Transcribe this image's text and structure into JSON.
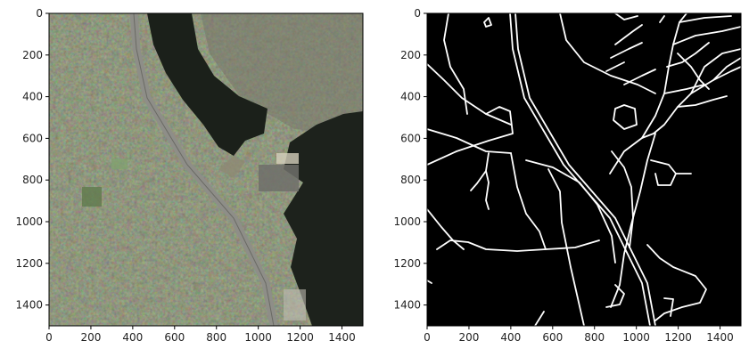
{
  "figure": {
    "panels": [
      {
        "name": "aerial-image",
        "kind": "image",
        "x_range": [
          0,
          1500
        ],
        "y_range": [
          1500,
          0
        ],
        "x_ticks": [
          "0",
          "200",
          "400",
          "600",
          "800",
          "1000",
          "1200",
          "1400"
        ],
        "y_ticks": [
          "0",
          "200",
          "400",
          "600",
          "800",
          "1000",
          "1200",
          "1400"
        ],
        "colors": {
          "forest": "#3a4a2e",
          "water": "#1a1f18",
          "highway": "#8e8e88"
        }
      },
      {
        "name": "road-mask",
        "kind": "mask",
        "x_range": [
          0,
          1500
        ],
        "y_range": [
          1500,
          0
        ],
        "x_ticks": [
          "0",
          "200",
          "400",
          "600",
          "800",
          "1000",
          "1200",
          "1400"
        ],
        "y_ticks": [
          "0",
          "200",
          "400",
          "600",
          "800",
          "1000",
          "1200",
          "1400"
        ],
        "colors": {
          "background": "#000000",
          "roads": "#ffffff"
        }
      }
    ]
  }
}
